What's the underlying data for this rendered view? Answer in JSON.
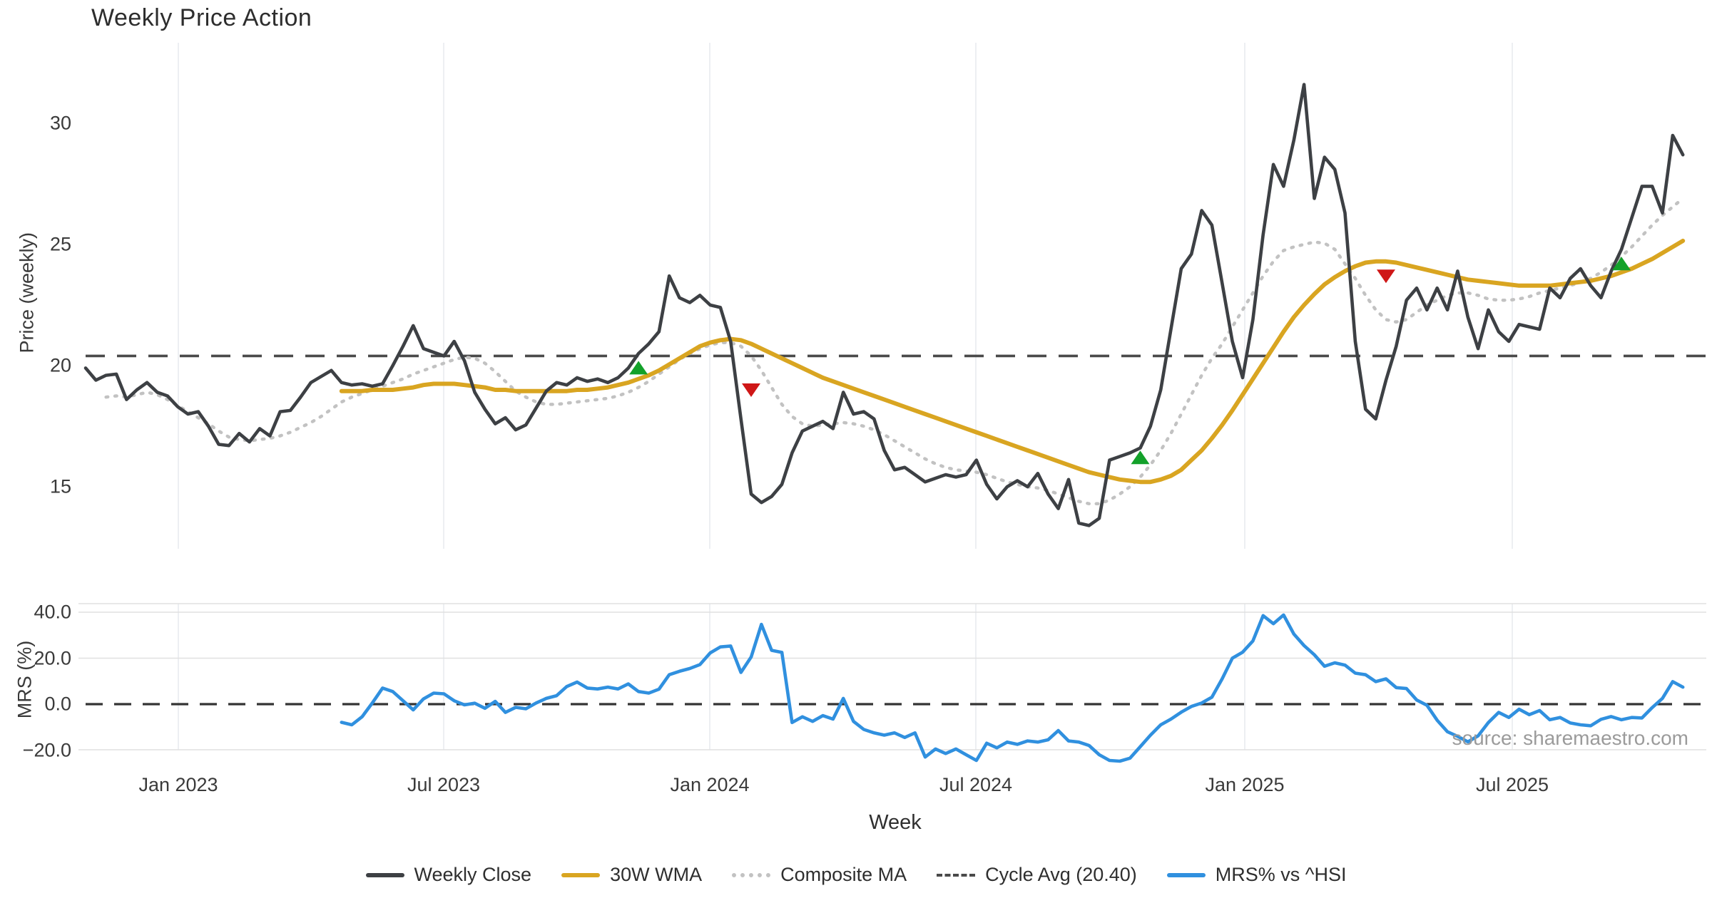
{
  "title": "Weekly Price Action",
  "source_note": "source: sharemaestro.com",
  "colors": {
    "close": "#3d4044",
    "wma": "#d9a521",
    "composite": "#c2c2c2",
    "cycle_avg": "#4a4a4a",
    "mrs": "#3090df",
    "buy_marker": "#13a12a",
    "sell_marker": "#cf1717",
    "gridline": "#edeff2",
    "panel_line": "#e0e0e0",
    "tick_text": "#3a3a3a"
  },
  "main_axis": {
    "label": "Price (weekly)",
    "ticks": [
      {
        "value": 30,
        "label": "30"
      },
      {
        "value": 25,
        "label": "25"
      },
      {
        "value": 20,
        "label": "20"
      },
      {
        "value": 15,
        "label": "15"
      }
    ]
  },
  "lower_axis": {
    "label": "MRS (%)",
    "ticks": [
      {
        "value": 40,
        "label": "40.0"
      },
      {
        "value": 20,
        "label": "20.0"
      },
      {
        "value": 0,
        "label": "0.0"
      },
      {
        "value": -20,
        "label": "−20.0"
      }
    ]
  },
  "x_axis": {
    "label": "Week",
    "ticks": [
      "Jan 2023",
      "Jul 2023",
      "Jan 2024",
      "Jul 2024",
      "Jan 2025",
      "Jul 2025"
    ]
  },
  "legend": [
    {
      "label": "Weekly Close",
      "swatch": "solid",
      "color_key": "close"
    },
    {
      "label": "30W WMA",
      "swatch": "solid",
      "color_key": "wma"
    },
    {
      "label": "Composite MA",
      "swatch": "dotted",
      "color_key": "composite"
    },
    {
      "label": "Cycle Avg (20.40)",
      "swatch": "dashed",
      "color_key": "cycle_avg"
    },
    {
      "label": "MRS% vs ^HSI",
      "swatch": "solid",
      "color_key": "mrs"
    }
  ],
  "chart_data": [
    {
      "type": "line",
      "panel": "price",
      "title": "Weekly Price Action",
      "ylabel": "Price (weekly)",
      "ylim": [
        12.4,
        33.3
      ],
      "grid": "vertical-only",
      "cycle_avg": 20.4,
      "x_unit": "weeks from first bar (Nov 2022), weekly spacing",
      "series": [
        {
          "name": "Weekly Close",
          "start_week": 0,
          "values": [
            19.9,
            19.4,
            19.6,
            19.65,
            18.6,
            19.0,
            19.3,
            18.9,
            18.75,
            18.3,
            18.0,
            18.1,
            17.5,
            16.75,
            16.7,
            17.2,
            16.85,
            17.4,
            17.1,
            18.1,
            18.15,
            18.7,
            19.3,
            19.55,
            19.8,
            19.3,
            19.2,
            19.25,
            19.15,
            19.25,
            20.0,
            20.8,
            21.65,
            20.7,
            20.55,
            20.4,
            21.0,
            20.2,
            18.9,
            18.2,
            17.6,
            17.85,
            17.35,
            17.55,
            18.25,
            18.95,
            19.3,
            19.2,
            19.5,
            19.35,
            19.45,
            19.3,
            19.5,
            19.9,
            20.5,
            20.9,
            21.4,
            23.7,
            22.8,
            22.6,
            22.9,
            22.5,
            22.4,
            21.0,
            17.8,
            14.7,
            14.35,
            14.6,
            15.1,
            16.4,
            17.3,
            17.5,
            17.7,
            17.4,
            18.9,
            18.0,
            18.1,
            17.8,
            16.5,
            15.7,
            15.8,
            15.5,
            15.2,
            15.35,
            15.5,
            15.4,
            15.5,
            16.1,
            15.1,
            14.5,
            15.0,
            15.25,
            15.0,
            15.55,
            14.7,
            14.1,
            15.3,
            13.5,
            13.4,
            13.7,
            16.1,
            16.25,
            16.4,
            16.6,
            17.5,
            19.0,
            21.5,
            24.0,
            24.6,
            26.4,
            25.8,
            23.4,
            21.0,
            19.5,
            21.9,
            25.4,
            28.3,
            27.4,
            29.3,
            31.6,
            26.9,
            28.6,
            28.1,
            26.3,
            21.0,
            18.2,
            17.8,
            19.4,
            20.8,
            22.7,
            23.2,
            22.3,
            23.2,
            22.3,
            23.9,
            22.0,
            20.7,
            22.3,
            21.4,
            21.0,
            21.7,
            21.6,
            21.5,
            23.2,
            22.8,
            23.6,
            24.0,
            23.3,
            22.8,
            23.9,
            24.8,
            26.1,
            27.4,
            27.4,
            26.3,
            29.5,
            28.7
          ]
        },
        {
          "name": "30W WMA",
          "start_week": 25,
          "values": [
            18.95,
            18.95,
            18.95,
            19.0,
            19.0,
            19.0,
            19.05,
            19.1,
            19.2,
            19.25,
            19.25,
            19.25,
            19.2,
            19.15,
            19.1,
            19.0,
            19.0,
            18.95,
            18.95,
            18.95,
            18.95,
            18.95,
            18.95,
            19.0,
            19.0,
            19.05,
            19.1,
            19.2,
            19.3,
            19.45,
            19.6,
            19.8,
            20.05,
            20.3,
            20.55,
            20.8,
            20.95,
            21.05,
            21.1,
            21.05,
            20.9,
            20.7,
            20.5,
            20.3,
            20.1,
            19.9,
            19.7,
            19.5,
            19.35,
            19.2,
            19.05,
            18.9,
            18.75,
            18.6,
            18.45,
            18.3,
            18.15,
            18.0,
            17.85,
            17.7,
            17.55,
            17.4,
            17.25,
            17.1,
            16.95,
            16.8,
            16.65,
            16.5,
            16.35,
            16.2,
            16.05,
            15.9,
            15.75,
            15.6,
            15.5,
            15.4,
            15.3,
            15.25,
            15.2,
            15.2,
            15.3,
            15.45,
            15.7,
            16.1,
            16.5,
            17.0,
            17.55,
            18.15,
            18.8,
            19.45,
            20.1,
            20.75,
            21.4,
            22.0,
            22.5,
            22.95,
            23.35,
            23.65,
            23.9,
            24.1,
            24.25,
            24.3,
            24.3,
            24.25,
            24.15,
            24.05,
            23.95,
            23.85,
            23.75,
            23.65,
            23.55,
            23.5,
            23.45,
            23.4,
            23.35,
            23.3,
            23.3,
            23.3,
            23.3,
            23.35,
            23.4,
            23.45,
            23.5,
            23.6,
            23.7,
            23.85,
            24.0,
            24.2,
            24.4,
            24.65,
            24.9,
            25.15
          ]
        },
        {
          "name": "Composite MA",
          "start_week": 2,
          "values": [
            18.7,
            18.75,
            18.7,
            18.8,
            18.9,
            18.8,
            18.6,
            18.35,
            18.1,
            17.85,
            17.6,
            17.3,
            17.05,
            16.95,
            16.9,
            16.95,
            17.0,
            17.1,
            17.25,
            17.45,
            17.65,
            17.9,
            18.2,
            18.5,
            18.7,
            18.85,
            19.0,
            19.15,
            19.3,
            19.45,
            19.65,
            19.8,
            19.95,
            20.1,
            20.25,
            20.35,
            20.3,
            20.1,
            19.75,
            19.35,
            18.95,
            18.7,
            18.5,
            18.4,
            18.4,
            18.45,
            18.5,
            18.55,
            18.6,
            18.65,
            18.75,
            18.9,
            19.1,
            19.35,
            19.65,
            19.95,
            20.25,
            20.5,
            20.7,
            20.85,
            20.95,
            20.95,
            20.8,
            20.4,
            19.8,
            19.1,
            18.4,
            17.9,
            17.6,
            17.5,
            17.55,
            17.6,
            17.65,
            17.6,
            17.5,
            17.35,
            17.15,
            16.9,
            16.65,
            16.4,
            16.15,
            15.95,
            15.8,
            15.7,
            15.65,
            15.6,
            15.5,
            15.35,
            15.2,
            15.1,
            15.0,
            14.95,
            14.85,
            14.7,
            14.55,
            14.4,
            14.3,
            14.3,
            14.45,
            14.7,
            15.0,
            15.4,
            15.9,
            16.5,
            17.2,
            18.0,
            18.8,
            19.6,
            20.3,
            20.9,
            21.6,
            22.3,
            23.0,
            23.7,
            24.3,
            24.75,
            24.9,
            25.0,
            25.1,
            25.05,
            24.8,
            24.2,
            23.6,
            22.9,
            22.3,
            21.9,
            21.8,
            21.9,
            22.2,
            22.5,
            22.7,
            22.9,
            23.0,
            23.0,
            22.9,
            22.75,
            22.7,
            22.7,
            22.75,
            22.85,
            23.0,
            23.1,
            23.2,
            23.3,
            23.45,
            23.6,
            23.85,
            24.15,
            24.5,
            24.9,
            25.35,
            25.8,
            26.2,
            26.55,
            26.9
          ]
        }
      ],
      "signals": {
        "buy": [
          {
            "week": 54,
            "value": 19.9
          },
          {
            "week": 103,
            "value": 16.2
          },
          {
            "week": 150,
            "value": 24.2
          }
        ],
        "sell": [
          {
            "week": 65,
            "value": 19.0
          },
          {
            "week": 127,
            "value": 23.7
          }
        ]
      }
    },
    {
      "type": "line",
      "panel": "mrs",
      "ylabel": "MRS (%)",
      "ylim": [
        -26,
        43
      ],
      "zero_line": 0,
      "series": [
        {
          "name": "MRS% vs ^HSI",
          "start_week": 25,
          "values": [
            -7.9,
            -9.0,
            -5.5,
            0.5,
            7.0,
            5.5,
            1.5,
            -2.5,
            2.3,
            4.8,
            4.5,
            1.5,
            -0.3,
            0.4,
            -1.8,
            1.2,
            -3.6,
            -1.4,
            -2.0,
            0.5,
            2.5,
            3.7,
            7.7,
            9.6,
            7.0,
            6.6,
            7.4,
            6.6,
            8.8,
            5.5,
            4.8,
            6.5,
            12.8,
            14.3,
            15.5,
            17.2,
            22.3,
            24.9,
            25.3,
            13.8,
            20.5,
            34.7,
            23.4,
            22.5,
            -8.0,
            -5.5,
            -7.5,
            -5.0,
            -6.5,
            2.5,
            -7.5,
            -11.0,
            -12.5,
            -13.5,
            -12.5,
            -14.5,
            -12.5,
            -23.0,
            -19.5,
            -21.5,
            -19.5,
            -22.0,
            -24.5,
            -17.0,
            -19.0,
            -16.5,
            -17.5,
            -16.0,
            -16.5,
            -15.5,
            -11.5,
            -16.0,
            -16.5,
            -18.0,
            -22.0,
            -24.5,
            -24.8,
            -23.5,
            -18.5,
            -13.5,
            -9.0,
            -6.5,
            -3.5,
            -1.0,
            0.5,
            3.0,
            11.0,
            20.0,
            22.6,
            27.5,
            38.5,
            35.0,
            38.8,
            30.5,
            25.5,
            21.5,
            16.5,
            18.0,
            17.0,
            13.5,
            12.8,
            9.8,
            11.0,
            7.2,
            6.8,
            1.8,
            -0.5,
            -7.0,
            -12.0,
            -14.0,
            -16.4,
            -13.8,
            -8.0,
            -3.6,
            -5.8,
            -2.2,
            -4.6,
            -2.8,
            -6.8,
            -5.8,
            -8.2,
            -9.0,
            -9.4,
            -6.6,
            -5.4,
            -6.8,
            -5.8,
            -6.0,
            -1.5,
            2.5,
            9.8,
            7.4
          ]
        }
      ]
    }
  ]
}
